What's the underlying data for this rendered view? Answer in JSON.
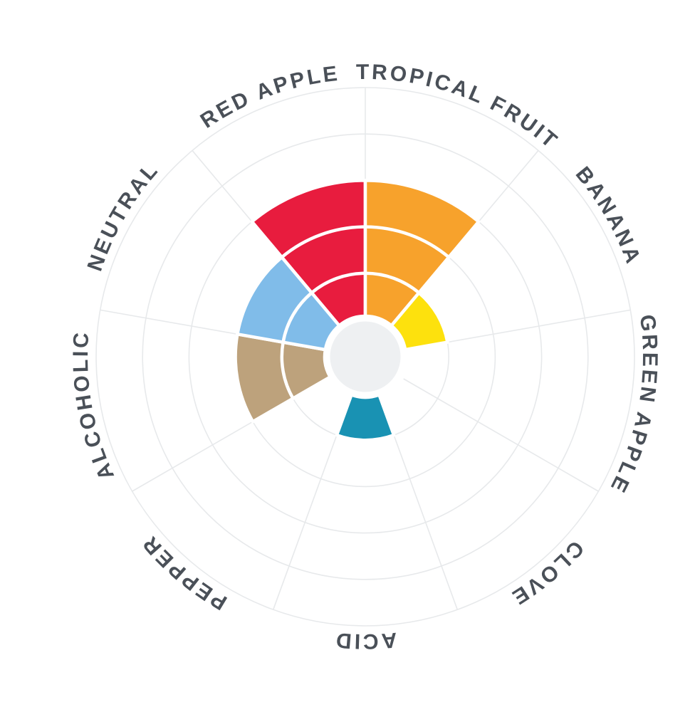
{
  "page": {
    "background_color": "#ffffff"
  },
  "chart_data": {
    "type": "polar_bar",
    "title": "",
    "description": "Flavor wheel / coxcomb chart with 9 aroma sectors, radial value scale 0-5 rings",
    "categories": [
      "RED APPLE",
      "TROPICAL FRUIT",
      "BANANA",
      "GREEN APPLE",
      "CLOVE",
      "ACID",
      "PEPPER",
      "ALCOHOLIC",
      "NEUTRAL"
    ],
    "values": [
      3,
      3,
      1,
      0,
      0,
      1,
      0,
      2,
      2
    ],
    "wedges": [
      {
        "label": "RED APPLE",
        "value": 3,
        "color": "#e81c3e",
        "center_angle": 110
      },
      {
        "label": "TROPICAL FRUIT",
        "value": 3,
        "color": "#f7a22c",
        "center_angle": 70
      },
      {
        "label": "BANANA",
        "value": 1,
        "color": "#fde10d",
        "center_angle": 30
      },
      {
        "label": "GREEN APPLE",
        "value": 0,
        "color": null,
        "center_angle": -10
      },
      {
        "label": "CLOVE",
        "value": 0,
        "color": null,
        "center_angle": -50
      },
      {
        "label": "ACID",
        "value": 1,
        "color": "#1992b3",
        "center_angle": -90
      },
      {
        "label": "PEPPER",
        "value": 0,
        "color": null,
        "center_angle": -130
      },
      {
        "label": "ALCOHOLIC",
        "value": 2,
        "color": "#bda27c",
        "center_angle": -170
      },
      {
        "label": "NEUTRAL",
        "value": 2,
        "color": "#80bce9",
        "center_angle": 150
      }
    ],
    "scale": {
      "rings": 5,
      "sector_angle_deg": 40,
      "value_range": [
        0,
        5
      ]
    },
    "layout": {
      "grid_on": true,
      "legend": "none",
      "labels_position": "curved around outer circle"
    },
    "style": {
      "grid_color": "#e7e9eb",
      "hub_color": "#eef0f2",
      "separator_color": "#ffffff",
      "label_color": "#4a5058",
      "background_color": "#ffffff"
    }
  }
}
